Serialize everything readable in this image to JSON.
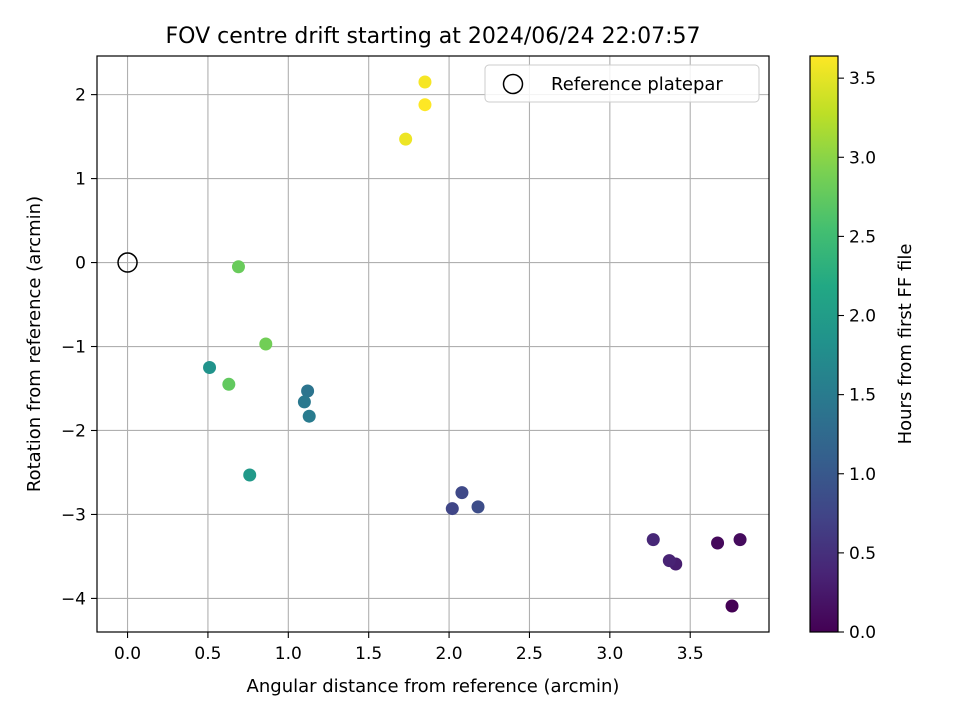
{
  "chart_data": {
    "type": "scatter",
    "title": "FOV centre drift starting at 2024/06/24 22:07:57",
    "xlabel": "Angular distance from reference (arcmin)",
    "ylabel": "Rotation from reference (arcmin)",
    "xlim": [
      -0.19,
      3.99
    ],
    "ylim": [
      -4.4,
      2.46
    ],
    "xticks": [
      0.0,
      0.5,
      1.0,
      1.5,
      2.0,
      2.5,
      3.0,
      3.5
    ],
    "xtick_labels": [
      "0.0",
      "0.5",
      "1.0",
      "1.5",
      "2.0",
      "2.5",
      "3.0",
      "3.5"
    ],
    "yticks": [
      -4,
      -3,
      -2,
      -1,
      0,
      1,
      2
    ],
    "ytick_labels": [
      "−4",
      "−3",
      "−2",
      "−1",
      "0",
      "1",
      "2"
    ],
    "grid": true,
    "legend": {
      "position": "top-right",
      "label": "Reference platepar"
    },
    "reference_point": {
      "x": 0.0,
      "y": 0.0
    },
    "colorbar": {
      "label": "Hours from first FF file",
      "range": [
        0.0,
        3.64
      ],
      "colormap": "viridis",
      "ticks": [
        0.0,
        0.5,
        1.0,
        1.5,
        2.0,
        2.5,
        3.0,
        3.5
      ],
      "tick_labels": [
        "0.0",
        "0.5",
        "1.0",
        "1.5",
        "2.0",
        "2.5",
        "3.0",
        "3.5"
      ]
    },
    "series": [
      {
        "name": "FOV centre drift",
        "points": [
          {
            "x": 3.76,
            "y": -4.09,
            "hours": 0.0
          },
          {
            "x": 3.67,
            "y": -3.34,
            "hours": 0.08
          },
          {
            "x": 3.81,
            "y": -3.3,
            "hours": 0.1
          },
          {
            "x": 3.41,
            "y": -3.59,
            "hours": 0.3
          },
          {
            "x": 3.37,
            "y": -3.55,
            "hours": 0.35
          },
          {
            "x": 3.27,
            "y": -3.3,
            "hours": 0.4
          },
          {
            "x": 2.02,
            "y": -2.93,
            "hours": 0.75
          },
          {
            "x": 2.08,
            "y": -2.74,
            "hours": 0.8
          },
          {
            "x": 2.18,
            "y": -2.91,
            "hours": 0.85
          },
          {
            "x": 1.12,
            "y": -1.53,
            "hours": 1.4
          },
          {
            "x": 1.1,
            "y": -1.66,
            "hours": 1.45
          },
          {
            "x": 1.13,
            "y": -1.83,
            "hours": 1.5
          },
          {
            "x": 0.51,
            "y": -1.25,
            "hours": 1.85
          },
          {
            "x": 0.76,
            "y": -2.53,
            "hours": 1.95
          },
          {
            "x": 0.63,
            "y": -1.45,
            "hours": 2.75
          },
          {
            "x": 0.69,
            "y": -0.05,
            "hours": 2.8
          },
          {
            "x": 0.86,
            "y": -0.97,
            "hours": 2.85
          },
          {
            "x": 1.73,
            "y": 1.47,
            "hours": 3.55
          },
          {
            "x": 1.85,
            "y": 2.15,
            "hours": 3.6
          },
          {
            "x": 1.85,
            "y": 1.88,
            "hours": 3.64
          }
        ]
      }
    ]
  },
  "colors": {
    "axis": "#000000",
    "grid": "#b0b0b0",
    "legend_border": "#cccccc"
  }
}
